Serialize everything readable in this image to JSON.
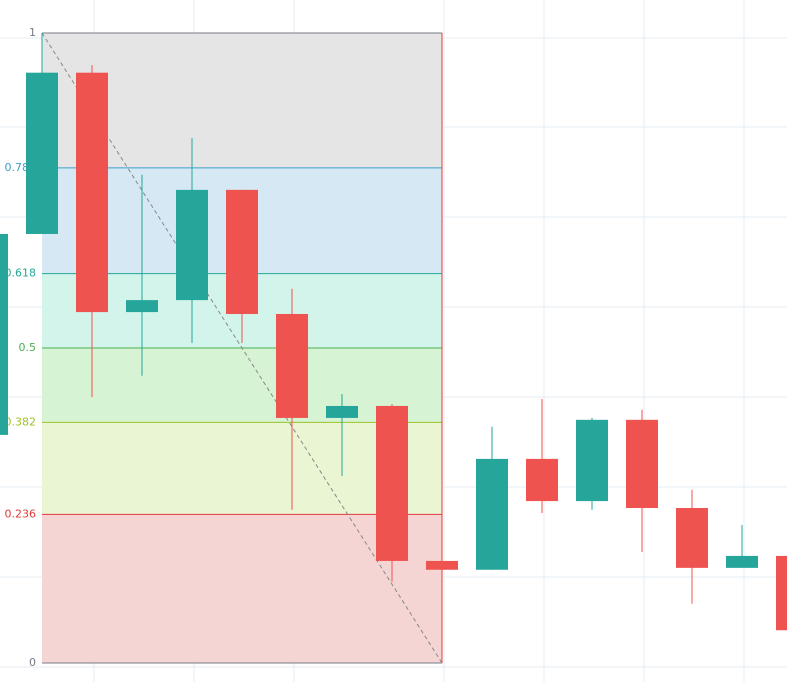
{
  "chart_data": {
    "type": "candlestick",
    "up_color": "#26a69a",
    "down_color": "#ef5350",
    "ylim": [
      0,
      1
    ],
    "open": [
      0.362,
      0.681,
      0.937,
      0.557,
      0.576,
      0.751,
      0.554,
      0.389,
      0.408,
      0.162,
      0.148,
      0.324,
      0.257,
      0.386,
      0.246,
      0.151,
      0.17
    ],
    "high": [
      0.681,
      1,
      0.949,
      0.775,
      0.833,
      0.751,
      0.594,
      0.427,
      0.411,
      0.162,
      0.375,
      0.419,
      0.389,
      0.402,
      0.275,
      0.219,
      0.17
    ],
    "low": [
      0.362,
      0.681,
      0.422,
      0.456,
      0.508,
      0.508,
      0.243,
      0.297,
      0.129,
      0.148,
      0.148,
      0.238,
      0.243,
      0.176,
      0.094,
      0.151,
      0.052
    ],
    "close": [
      0.681,
      0.937,
      0.557,
      0.576,
      0.751,
      0.554,
      0.389,
      0.408,
      0.162,
      0.148,
      0.324,
      0.257,
      0.386,
      0.246,
      0.151,
      0.17,
      0.052
    ],
    "fib_levels": [
      {
        "value": 1,
        "color": "#787b86",
        "fill": "#e5e5e5"
      },
      {
        "value": 0.786,
        "color": "#3ba0c8",
        "fill": "#d5e8f4"
      },
      {
        "value": 0.618,
        "color": "#22ab94",
        "fill": "#d3f4ea"
      },
      {
        "value": 0.5,
        "color": "#4caf50",
        "fill": "#d6f3d4"
      },
      {
        "value": 0.382,
        "color": "#9bc32a",
        "fill": "#e9f5d3"
      },
      {
        "value": 0.236,
        "color": "#e03b3b",
        "fill": "#f5d4d4"
      },
      {
        "value": 0,
        "color": "#787b86",
        "fill": "none"
      }
    ]
  }
}
